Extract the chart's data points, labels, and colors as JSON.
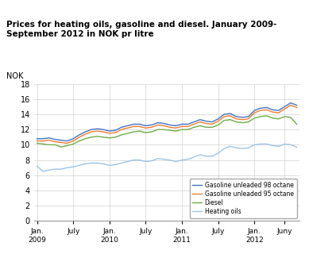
{
  "title": "Prices for heating oils, gasoline and diesel. January 2009-\nSeptember 2012 in NOK pr litre",
  "nok_label": "NOK",
  "ylim": [
    0,
    18
  ],
  "yticks": [
    0,
    2,
    4,
    6,
    8,
    10,
    12,
    14,
    16,
    18
  ],
  "x_labels": [
    "Jan.\n2009",
    "July",
    "Jan.\n2010",
    "July",
    "Jan.\n2011",
    "July",
    "Jan.\n2012",
    "Juny"
  ],
  "xtick_positions": [
    0,
    6,
    12,
    18,
    24,
    30,
    36,
    41
  ],
  "colors": {
    "gasoline98": "#4472C4",
    "gasoline95": "#ED7D31",
    "diesel": "#70AD47",
    "heating": "#9DC3E6"
  },
  "legend_labels": [
    "Gasoline unleaded 98 octane",
    "Gasoline unleaded 95 octane",
    "Diesel",
    "Heating oils"
  ],
  "gasoline98": [
    10.8,
    10.8,
    10.9,
    10.7,
    10.6,
    10.5,
    10.8,
    11.3,
    11.7,
    12.0,
    12.1,
    12.0,
    11.8,
    11.9,
    12.3,
    12.5,
    12.7,
    12.7,
    12.5,
    12.6,
    12.9,
    12.8,
    12.6,
    12.5,
    12.7,
    12.7,
    13.0,
    13.3,
    13.1,
    13.0,
    13.4,
    14.0,
    14.1,
    13.7,
    13.6,
    13.7,
    14.5,
    14.8,
    14.9,
    14.6,
    14.5,
    15.0,
    15.5,
    15.2
  ],
  "gasoline95": [
    10.5,
    10.5,
    10.6,
    10.4,
    10.3,
    10.2,
    10.5,
    11.0,
    11.4,
    11.7,
    11.8,
    11.7,
    11.5,
    11.6,
    12.0,
    12.2,
    12.4,
    12.4,
    12.2,
    12.3,
    12.6,
    12.5,
    12.3,
    12.2,
    12.4,
    12.4,
    12.7,
    13.0,
    12.8,
    12.7,
    13.1,
    13.7,
    13.8,
    13.4,
    13.3,
    13.4,
    14.2,
    14.5,
    14.6,
    14.3,
    14.2,
    14.7,
    15.2,
    14.9
  ],
  "diesel": [
    10.2,
    10.1,
    10.0,
    10.0,
    9.7,
    9.9,
    10.1,
    10.5,
    10.8,
    11.0,
    11.1,
    11.0,
    10.9,
    11.0,
    11.3,
    11.5,
    11.7,
    11.8,
    11.6,
    11.7,
    12.0,
    12.0,
    11.9,
    11.8,
    12.0,
    12.0,
    12.3,
    12.5,
    12.3,
    12.3,
    12.6,
    13.2,
    13.3,
    13.0,
    12.9,
    13.0,
    13.5,
    13.7,
    13.8,
    13.5,
    13.4,
    13.7,
    13.6,
    12.7
  ],
  "heating": [
    7.2,
    6.5,
    6.7,
    6.8,
    6.8,
    7.0,
    7.1,
    7.3,
    7.5,
    7.6,
    7.6,
    7.5,
    7.3,
    7.4,
    7.6,
    7.8,
    8.0,
    8.0,
    7.8,
    7.9,
    8.2,
    8.1,
    8.0,
    7.8,
    8.0,
    8.1,
    8.4,
    8.7,
    8.5,
    8.5,
    8.9,
    9.5,
    9.8,
    9.6,
    9.5,
    9.6,
    10.0,
    10.1,
    10.1,
    9.9,
    9.8,
    10.1,
    10.0,
    9.7
  ]
}
